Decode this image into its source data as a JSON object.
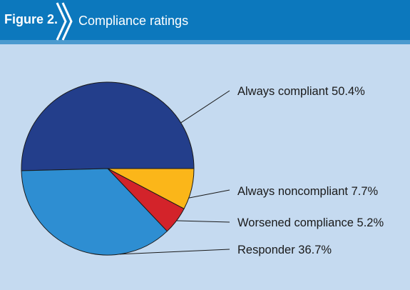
{
  "header": {
    "figure_label": "Figure 2.",
    "title": "Compliance ratings"
  },
  "colors": {
    "header_bg": "#0c78bd",
    "panel_bg": "#c5daf0"
  },
  "chart_data": {
    "type": "pie",
    "title": "Compliance ratings",
    "slices": [
      {
        "name": "Always compliant",
        "value": 50.4,
        "label": "Always compliant 50.4%",
        "color": "#233e8b"
      },
      {
        "name": "Always noncompliant",
        "value": 7.7,
        "label": "Always noncompliant 7.7%",
        "color": "#fbb619"
      },
      {
        "name": "Worsened compliance",
        "value": 5.2,
        "label": "Worsened compliance 5.2%",
        "color": "#d3232a"
      },
      {
        "name": "Responder",
        "value": 36.7,
        "label": "Responder 36.7%",
        "color": "#2e8ed2"
      }
    ],
    "legend": "labels-right-with-leader-lines"
  }
}
